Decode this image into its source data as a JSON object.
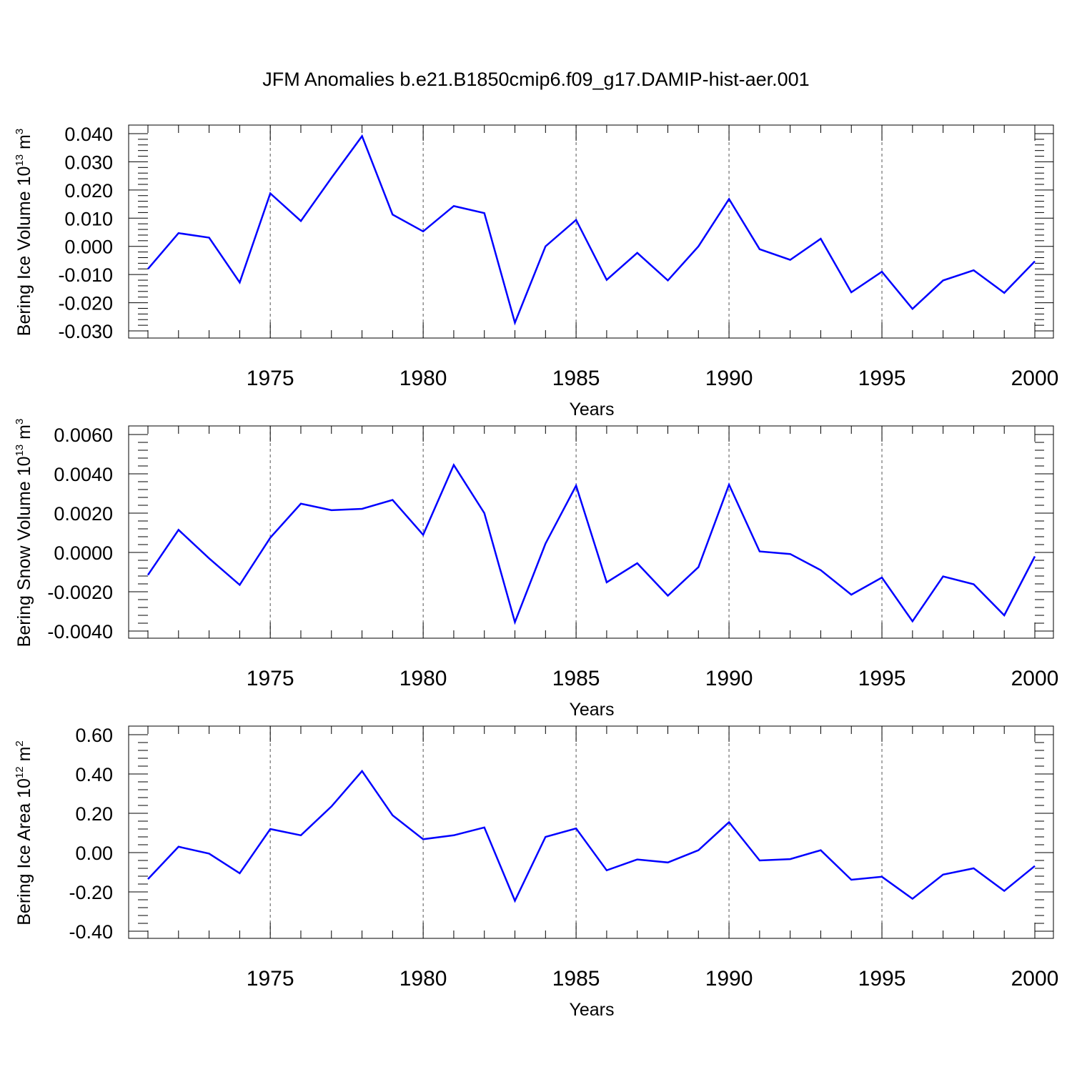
{
  "title": "JFM Anomalies b.e21.B1850cmip6.f09_g17.DAMIP-hist-aer.001",
  "colors": {
    "line": "#0000ff",
    "axis": "#000000",
    "grid": "#555555"
  },
  "chart_data": [
    {
      "type": "line",
      "ylabel": {
        "text": "Bering Ice Volume 10",
        "sup": "13",
        "unit": " m",
        "unit_sup": "3"
      },
      "xlabel": "Years",
      "xlim": [
        1971,
        2000
      ],
      "ylim": [
        -0.03,
        0.04
      ],
      "x_ticks": [
        "1975",
        "1980",
        "1985",
        "1990",
        "1995",
        "2000"
      ],
      "x_tick_values": [
        1975,
        1980,
        1985,
        1990,
        1995,
        2000
      ],
      "y_ticks": [
        "0.040",
        "0.030",
        "0.020",
        "0.010",
        "0.000",
        "-0.010",
        "-0.020",
        "-0.030"
      ],
      "y_tick_values": [
        0.04,
        0.03,
        0.02,
        0.01,
        0.0,
        -0.01,
        -0.02,
        -0.03
      ],
      "grid": "vertical dashed at major x ticks",
      "series": [
        {
          "x": [
            1971,
            1972,
            1973,
            1974,
            1975,
            1976,
            1977,
            1978,
            1979,
            1980,
            1981,
            1982,
            1983,
            1984,
            1985,
            1986,
            1987,
            1988,
            1989,
            1990,
            1991,
            1992,
            1993,
            1994,
            1995,
            1996,
            1997,
            1998,
            1999,
            2000
          ],
          "values": [
            -0.008,
            0.0047,
            0.0031,
            -0.0128,
            0.0188,
            0.009,
            0.0243,
            0.0391,
            0.0113,
            0.0053,
            0.0143,
            0.0118,
            -0.0271,
            0.0,
            0.0094,
            -0.0119,
            -0.0023,
            -0.0121,
            0.0,
            0.0168,
            -0.001,
            -0.0048,
            0.0027,
            -0.0163,
            -0.009,
            -0.0222,
            -0.0121,
            -0.0085,
            -0.0165,
            -0.0053
          ]
        }
      ]
    },
    {
      "type": "line",
      "ylabel": {
        "text": "Bering Snow Volume 10",
        "sup": "13",
        "unit": " m",
        "unit_sup": "3"
      },
      "xlabel": "Years",
      "xlim": [
        1971,
        2000
      ],
      "ylim": [
        -0.004,
        0.006
      ],
      "x_ticks": [
        "1975",
        "1980",
        "1985",
        "1990",
        "1995",
        "2000"
      ],
      "x_tick_values": [
        1975,
        1980,
        1985,
        1990,
        1995,
        2000
      ],
      "y_ticks": [
        "0.0060",
        "0.0040",
        "0.0020",
        "0.0000",
        "-0.0020",
        "-0.0040"
      ],
      "y_tick_values": [
        0.006,
        0.004,
        0.002,
        0.0,
        -0.002,
        -0.004
      ],
      "grid": "vertical dashed at major x ticks",
      "series": [
        {
          "x": [
            1971,
            1972,
            1973,
            1974,
            1975,
            1976,
            1977,
            1978,
            1979,
            1980,
            1981,
            1982,
            1983,
            1984,
            1985,
            1986,
            1987,
            1988,
            1989,
            1990,
            1991,
            1992,
            1993,
            1994,
            1995,
            1996,
            1997,
            1998,
            1999,
            2000
          ],
          "values": [
            -0.00115,
            0.00115,
            -0.0003,
            -0.00165,
            0.00075,
            0.00248,
            0.00215,
            0.00222,
            0.00267,
            0.0009,
            0.00445,
            0.002,
            -0.00355,
            0.00045,
            0.0034,
            -0.00152,
            -0.00055,
            -0.0022,
            -0.00075,
            0.00345,
            5e-05,
            -8e-05,
            -0.0009,
            -0.00215,
            -0.00128,
            -0.0035,
            -0.00122,
            -0.00162,
            -0.0032,
            -0.0002
          ]
        }
      ]
    },
    {
      "type": "line",
      "ylabel": {
        "text": "Bering Ice Area 10",
        "sup": "12",
        "unit": " m",
        "unit_sup": "2"
      },
      "xlabel": "Years",
      "xlim": [
        1971,
        2000
      ],
      "ylim": [
        -0.4,
        0.6
      ],
      "x_ticks": [
        "1975",
        "1980",
        "1985",
        "1990",
        "1995",
        "2000"
      ],
      "x_tick_values": [
        1975,
        1980,
        1985,
        1990,
        1995,
        2000
      ],
      "y_ticks": [
        "0.60",
        "0.40",
        "0.20",
        "0.00",
        "-0.20",
        "-0.40"
      ],
      "y_tick_values": [
        0.6,
        0.4,
        0.2,
        0.0,
        -0.2,
        -0.4
      ],
      "grid": "vertical dashed at major x ticks",
      "series": [
        {
          "x": [
            1971,
            1972,
            1973,
            1974,
            1975,
            1976,
            1977,
            1978,
            1979,
            1980,
            1981,
            1982,
            1983,
            1984,
            1985,
            1986,
            1987,
            1988,
            1989,
            1990,
            1991,
            1992,
            1993,
            1994,
            1995,
            1996,
            1997,
            1998,
            1999,
            2000
          ],
          "values": [
            -0.135,
            0.03,
            -0.005,
            -0.105,
            0.12,
            0.088,
            0.235,
            0.415,
            0.19,
            0.068,
            0.088,
            0.128,
            -0.245,
            0.08,
            0.123,
            -0.09,
            -0.035,
            -0.05,
            0.012,
            0.155,
            -0.04,
            -0.033,
            0.012,
            -0.138,
            -0.123,
            -0.235,
            -0.112,
            -0.08,
            -0.195,
            -0.068
          ]
        }
      ]
    }
  ]
}
